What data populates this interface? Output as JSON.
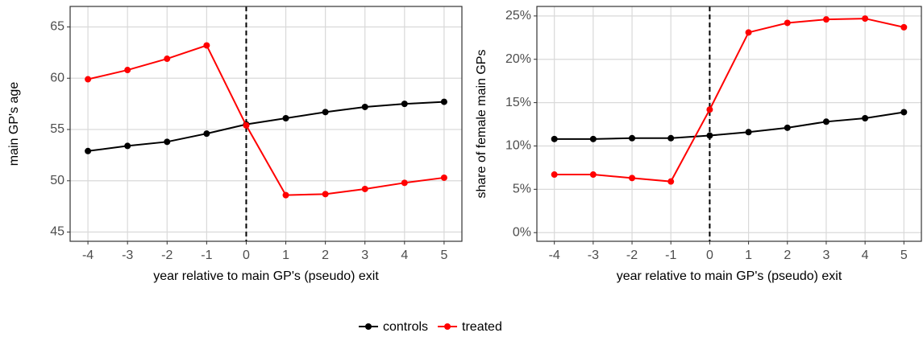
{
  "chart_data": [
    {
      "type": "line",
      "xlabel": "year relative to main GP's (pseudo) exit",
      "ylabel": "main GP's age",
      "x": [
        -4,
        -3,
        -2,
        -1,
        0,
        1,
        2,
        3,
        4,
        5
      ],
      "series": [
        {
          "name": "controls",
          "color": "#000000",
          "values": [
            52.9,
            53.4,
            53.8,
            54.6,
            55.5,
            56.1,
            56.7,
            57.2,
            57.5,
            57.7
          ]
        },
        {
          "name": "treated",
          "color": "#ff0000",
          "values": [
            59.9,
            60.8,
            61.9,
            63.2,
            55.4,
            48.6,
            48.7,
            49.2,
            49.8,
            50.3
          ]
        }
      ],
      "xlim": [
        -4.45,
        5.45
      ],
      "xticks": [
        -4,
        -3,
        -2,
        -1,
        0,
        1,
        2,
        3,
        4,
        5
      ],
      "ylim": [
        44.1,
        67
      ],
      "yticks": [
        45,
        50,
        55,
        60,
        65
      ],
      "vline": 0,
      "grid": true
    },
    {
      "type": "line",
      "xlabel": "year relative to main GP's (pseudo) exit",
      "ylabel": "share of female main GPs",
      "x": [
        -4,
        -3,
        -2,
        -1,
        0,
        1,
        2,
        3,
        4,
        5
      ],
      "series": [
        {
          "color": "#000000",
          "values": [
            10.8,
            10.8,
            10.9,
            10.9,
            11.2,
            11.6,
            12.1,
            12.8,
            13.2,
            13.9
          ]
        },
        {
          "color": "#ff0000",
          "values": [
            6.7,
            6.7,
            6.3,
            5.9,
            14.2,
            23.1,
            24.2,
            24.6,
            24.7,
            23.7
          ]
        }
      ],
      "xlim": [
        -4.45,
        5.45
      ],
      "xticks": [
        -4,
        -3,
        -2,
        -1,
        0,
        1,
        2,
        3,
        4,
        5
      ],
      "ylim": [
        -1.0,
        26.1
      ],
      "yticks": [
        {
          "value": 0,
          "label": "0%"
        },
        {
          "value": 5,
          "label": "5%"
        },
        {
          "value": 10,
          "label": "10%"
        },
        {
          "value": 15,
          "label": "15%"
        },
        {
          "value": 20,
          "label": "20%"
        },
        {
          "value": 25,
          "label": "25%"
        }
      ],
      "vline": 0,
      "grid": true
    }
  ]
}
